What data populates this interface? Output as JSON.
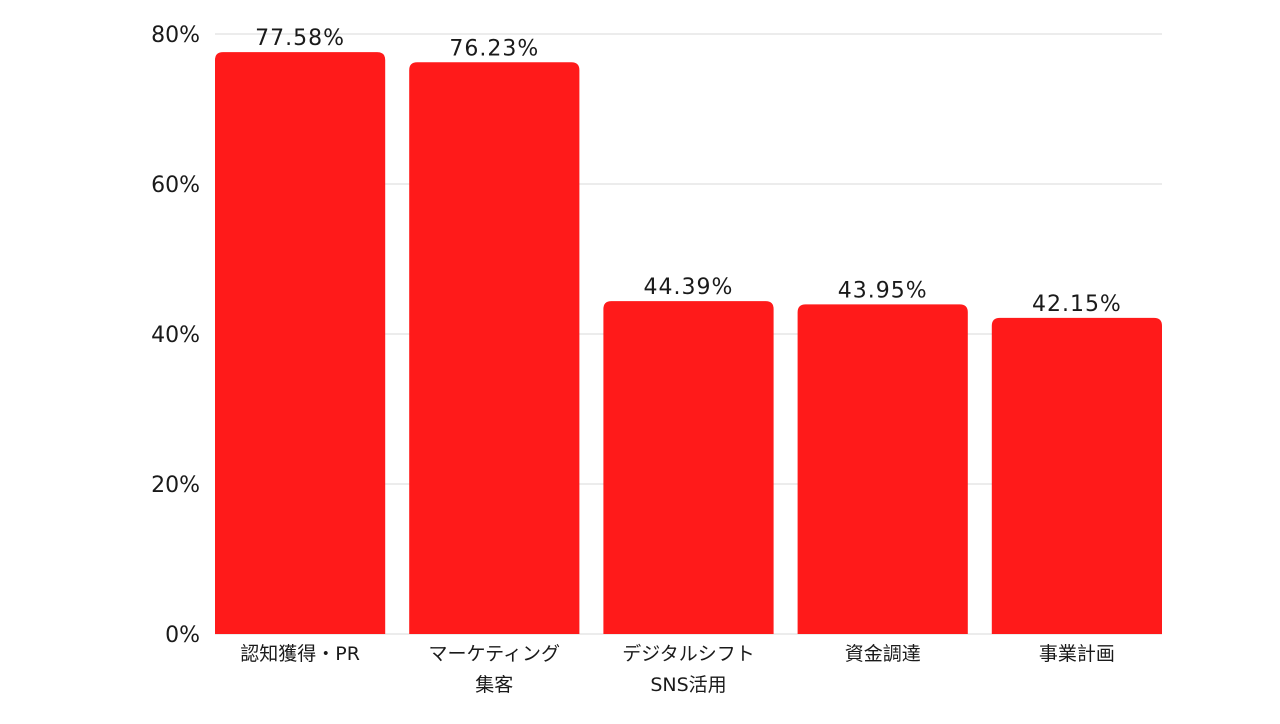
{
  "chart_data": {
    "type": "bar",
    "categories": [
      [
        "認知獲得・PR"
      ],
      [
        "マーケティング",
        "集客"
      ],
      [
        "デジタルシフト",
        "SNS活用"
      ],
      [
        "資金調達"
      ],
      [
        "事業計画"
      ]
    ],
    "values": [
      77.58,
      76.23,
      44.39,
      43.95,
      42.15
    ],
    "data_labels": [
      "77.58%",
      "76.23%",
      "44.39%",
      "43.95%",
      "42.15%"
    ],
    "y_ticks": [
      0,
      20,
      40,
      60,
      80
    ],
    "y_tick_labels": [
      "0%",
      "20%",
      "40%",
      "60%",
      "80%"
    ],
    "ylim": [
      0,
      80
    ],
    "grid": true,
    "bar_color": "#FF1A1A",
    "grid_color": "#D9D9D9",
    "text_color": "#1a1a1a",
    "title": "",
    "xlabel": "",
    "ylabel": ""
  }
}
